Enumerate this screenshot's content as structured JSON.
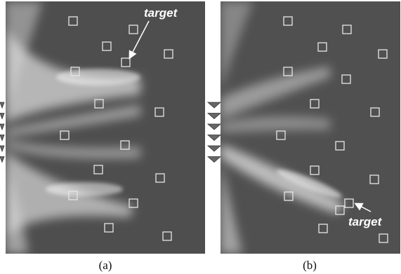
{
  "panels": [
    {
      "caption": "(a)",
      "annotation": "target"
    },
    {
      "caption": "(b)",
      "annotation": "target"
    }
  ]
}
